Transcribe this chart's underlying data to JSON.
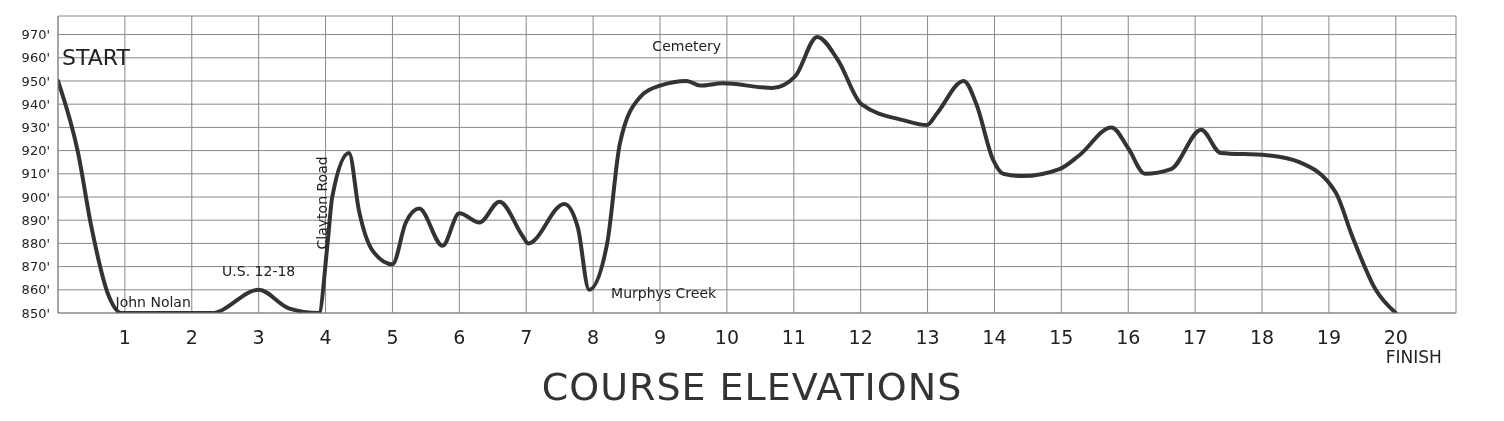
{
  "chart_data": {
    "type": "line",
    "title": "COURSE ELEVATIONS",
    "x": [
      0,
      0.3,
      0.5,
      0.75,
      0.95,
      2.3,
      3.0,
      3.45,
      3.9,
      4.03,
      4.1,
      4.35,
      4.5,
      4.7,
      5.0,
      5.2,
      5.4,
      5.75,
      6.0,
      6.3,
      6.6,
      6.95,
      7.03,
      7.57,
      7.77,
      7.94,
      8.21,
      8.4,
      8.7,
      9.0,
      9.4,
      9.6,
      9.94,
      10.68,
      11.02,
      11.35,
      11.66,
      12.01,
      12.65,
      12.99,
      13.14,
      13.54,
      13.73,
      13.98,
      14.13,
      14.42,
      14.97,
      15.27,
      15.75,
      16.0,
      16.25,
      16.64,
      17.09,
      17.38,
      18.07,
      18.56,
      19.1,
      19.35,
      19.7,
      20.0
    ],
    "series": [
      {
        "color": "#333333",
        "values": [
          950,
          919,
          887,
          858,
          850,
          850,
          860,
          852,
          850,
          880,
          900,
          919,
          894,
          877,
          871,
          889,
          895,
          879,
          893,
          889,
          898,
          883,
          880,
          897,
          887,
          860,
          880,
          923,
          943,
          948,
          950,
          948,
          949,
          947,
          952,
          969,
          959,
          940,
          933,
          931,
          936,
          950,
          940,
          916,
          910,
          909,
          912,
          918,
          930,
          921,
          910,
          912,
          929,
          919,
          918,
          915,
          902,
          883,
          860,
          850
        ]
      }
    ],
    "xlim": [
      0,
      20.9
    ],
    "xticks": [
      1,
      2,
      3,
      4,
      5,
      6,
      7,
      8,
      9,
      10,
      11,
      12,
      13,
      14,
      15,
      16,
      17,
      18,
      19,
      20
    ],
    "ylim": [
      850,
      978
    ],
    "yticks": [
      {
        "value": 850,
        "label": "850'"
      },
      {
        "value": 860,
        "label": "860'"
      },
      {
        "value": 870,
        "label": "870'"
      },
      {
        "value": 880,
        "label": "880'"
      },
      {
        "value": 890,
        "label": "890'"
      },
      {
        "value": 900,
        "label": "900'"
      },
      {
        "value": 910,
        "label": "910'"
      },
      {
        "value": 920,
        "label": "920'"
      },
      {
        "value": 930,
        "label": "930'"
      },
      {
        "value": 940,
        "label": "940'"
      },
      {
        "value": 950,
        "label": "950'"
      },
      {
        "value": 960,
        "label": "960'"
      },
      {
        "value": 970,
        "label": "970'"
      }
    ],
    "annotations": [
      {
        "text": "START",
        "x": 0,
        "y": 950
      },
      {
        "text": "John Nolan",
        "x": 0.95,
        "y": 850
      },
      {
        "text": "U.S. 12-18",
        "x": 3.0,
        "y": 860
      },
      {
        "text": "Clayton Road",
        "x": 4.35,
        "y": 919
      },
      {
        "text": "Cemetery",
        "x": 9.4,
        "y": 950
      },
      {
        "text": "Murphys Creek",
        "x": 7.94,
        "y": 860
      },
      "FINISH"
    ],
    "grid": true,
    "marker": "none",
    "line_style": "solid"
  }
}
